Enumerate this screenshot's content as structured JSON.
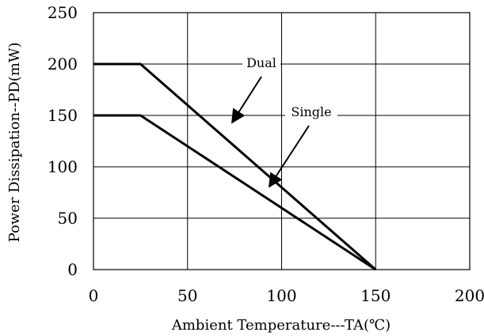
{
  "chart_data": {
    "type": "line",
    "title": "",
    "xlabel": "Ambient Temperature---TA(℃)",
    "ylabel": "Power Dissipation--PD(mW)",
    "xlim": [
      0,
      200
    ],
    "ylim": [
      0,
      250
    ],
    "xticks": [
      0,
      50,
      100,
      150,
      200
    ],
    "yticks": [
      0,
      50,
      100,
      150,
      200,
      250
    ],
    "grid": true,
    "series": [
      {
        "name": "Dual",
        "x": [
          0,
          25,
          150
        ],
        "y": [
          200,
          200,
          0
        ],
        "color": "#000000"
      },
      {
        "name": "Single",
        "x": [
          0,
          25,
          150
        ],
        "y": [
          150,
          150,
          0
        ],
        "color": "#000000"
      }
    ],
    "annotations": [
      {
        "text": "Dual",
        "series": 0
      },
      {
        "text": "Single",
        "series": 1
      }
    ]
  }
}
